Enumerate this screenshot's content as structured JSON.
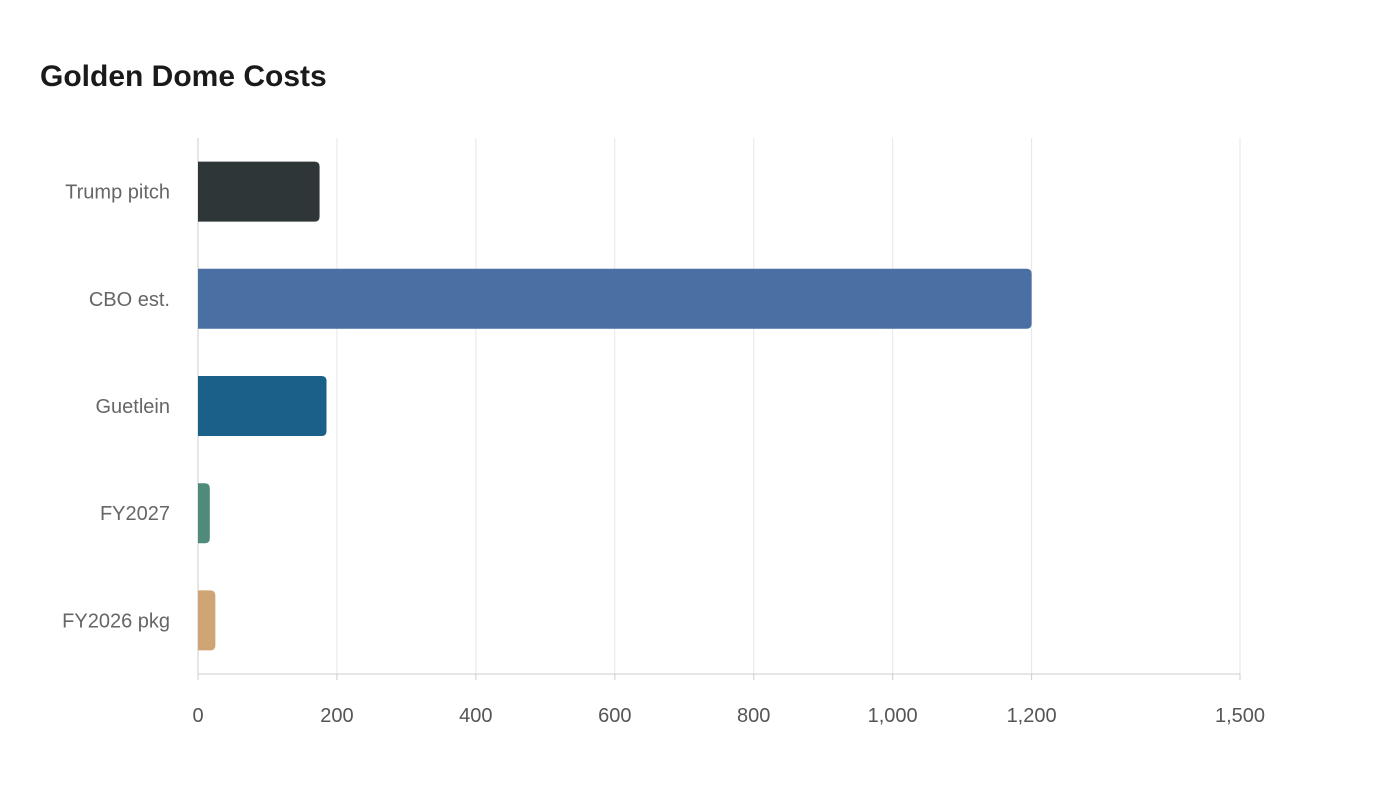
{
  "chart_data": {
    "type": "bar",
    "orientation": "horizontal",
    "title": "Golden Dome Costs",
    "xlabel": "",
    "ylabel": "",
    "categories": [
      "Trump pitch",
      "CBO est.",
      "Guetlein",
      "FY2027",
      "FY2026 pkg"
    ],
    "values": [
      175,
      1200,
      185,
      17,
      25
    ],
    "colors": [
      "#2e3638",
      "#4a6fa3",
      "#1a6088",
      "#4f8a7a",
      "#d0a575"
    ],
    "xlim": [
      0,
      1500
    ],
    "xticks": [
      0,
      200,
      400,
      600,
      800,
      1000,
      1200,
      1500
    ],
    "xtick_labels": [
      "0",
      "200",
      "400",
      "600",
      "800",
      "1,000",
      "1,200",
      "1,500"
    ],
    "grid": "vertical",
    "legend": "none"
  }
}
